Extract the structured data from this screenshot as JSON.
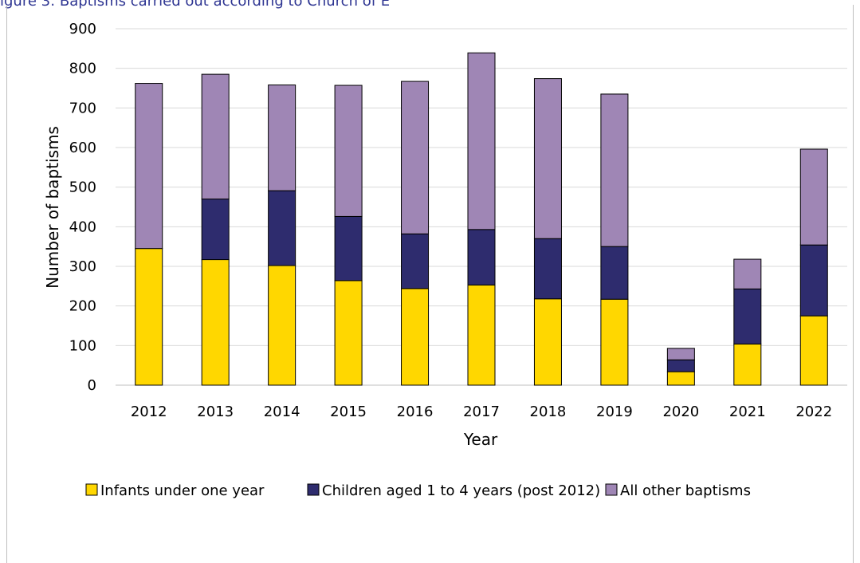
{
  "chart_data": {
    "type": "bar",
    "stacked": true,
    "title": "igure 3: Baptisms carried out according to Church of E",
    "xlabel": "Year",
    "ylabel": "Number of baptisms",
    "ylim": [
      0,
      900
    ],
    "yticks": [
      "0",
      "100",
      "200",
      "300",
      "400",
      "500",
      "600",
      "700",
      "800",
      "900"
    ],
    "grid": true,
    "legend_position": "bottom",
    "categories": [
      "2012",
      "2013",
      "2014",
      "2015",
      "2016",
      "2017",
      "2018",
      "2019",
      "2020",
      "2021",
      "2022"
    ],
    "series": [
      {
        "name": "Infants under one year",
        "color": "#ffd700",
        "values": [
          345,
          317,
          302,
          264,
          244,
          253,
          218,
          217,
          34,
          104,
          175
        ]
      },
      {
        "name": "Children aged 1 to 4 years (post 2012)",
        "color": "#2e2c6e",
        "values": [
          0,
          153,
          189,
          162,
          138,
          140,
          152,
          133,
          30,
          139,
          179
        ]
      },
      {
        "name": "All other baptisms",
        "color": "#9f86b5",
        "values": [
          417,
          315,
          267,
          331,
          385,
          446,
          404,
          385,
          29,
          75,
          242
        ]
      }
    ]
  }
}
